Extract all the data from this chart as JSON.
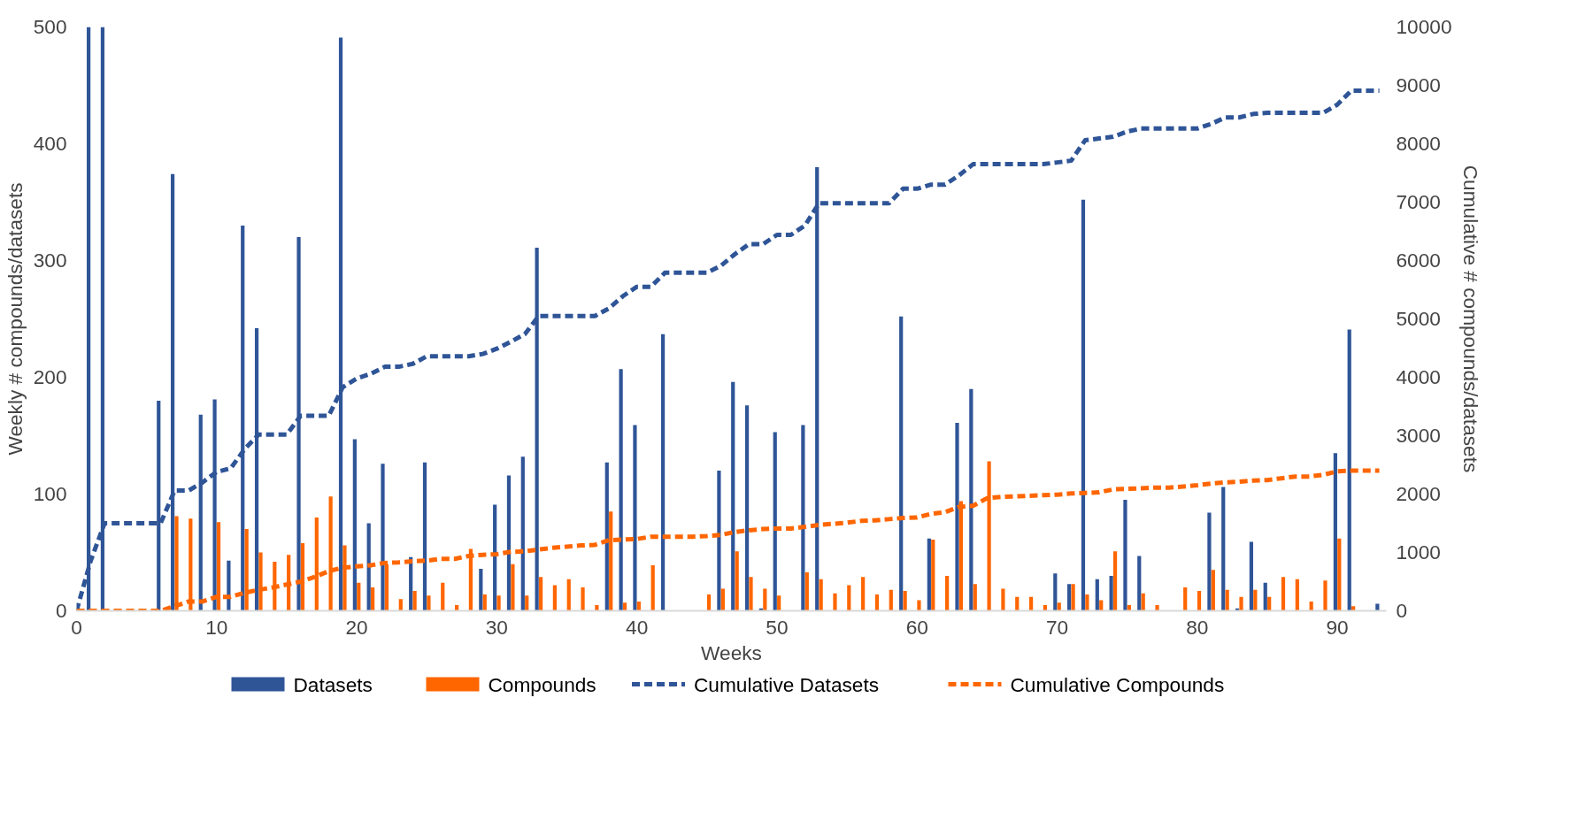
{
  "chart_data": {
    "type": "bar",
    "xlabel": "Weeks",
    "ylabel": "Weekly # compounds/datasets",
    "y2label": "Cumulative # compounds/datasets",
    "xlim": [
      0,
      93.5
    ],
    "xticks": [
      0,
      10,
      20,
      30,
      40,
      50,
      60,
      70,
      80,
      90
    ],
    "ylim": [
      0,
      500
    ],
    "yticks": [
      0,
      100,
      200,
      300,
      400,
      500
    ],
    "y2lim": [
      0,
      10000
    ],
    "y2ticks": [
      0,
      1000,
      2000,
      3000,
      4000,
      5000,
      6000,
      7000,
      8000,
      9000,
      10000
    ],
    "grid": false,
    "legend": "bottom",
    "marker": "none",
    "series": [
      {
        "name": "Datasets",
        "color": "#2f5597",
        "x": [
          1,
          2,
          6,
          7,
          9,
          10,
          11,
          12,
          13,
          16,
          19,
          20,
          21,
          22,
          24,
          25,
          29,
          30,
          31,
          32,
          33,
          38,
          39,
          40,
          42,
          46,
          47,
          48,
          49,
          50,
          52,
          53,
          59,
          61,
          63,
          64,
          70,
          71,
          72,
          73,
          74,
          75,
          76,
          81,
          82,
          83,
          84,
          85,
          90,
          91,
          93
        ],
        "values": [
          500,
          500,
          180,
          374,
          168,
          181,
          43,
          330,
          242,
          320,
          491,
          147,
          75,
          126,
          46,
          127,
          36,
          91,
          116,
          132,
          311,
          127,
          207,
          159,
          237,
          120,
          196,
          176,
          2,
          153,
          159,
          380,
          252,
          62,
          161,
          190,
          32,
          23,
          352,
          27,
          30,
          95,
          47,
          84,
          106,
          2,
          59,
          24,
          135,
          241,
          6
        ]
      },
      {
        "name": "Compounds",
        "color": "#ff6600",
        "x": [
          7,
          8,
          10,
          12,
          13,
          14,
          15,
          16,
          17,
          18,
          19,
          20,
          21,
          22,
          23,
          24,
          25,
          26,
          27,
          28,
          29,
          30,
          31,
          32,
          33,
          34,
          35,
          36,
          37,
          38,
          39,
          40,
          41,
          45,
          46,
          47,
          48,
          49,
          50,
          52,
          53,
          54,
          55,
          56,
          57,
          58,
          59,
          60,
          61,
          62,
          63,
          64,
          65,
          66,
          67,
          68,
          69,
          70,
          71,
          72,
          73,
          74,
          75,
          76,
          77,
          79,
          80,
          81,
          82,
          83,
          84,
          85,
          86,
          87,
          88,
          89,
          90,
          91
        ],
        "values": [
          81,
          79,
          76,
          70,
          50,
          42,
          48,
          58,
          80,
          98,
          56,
          24,
          20,
          40,
          10,
          17,
          13,
          24,
          5,
          53,
          14,
          13,
          40,
          13,
          29,
          22,
          27,
          20,
          5,
          85,
          7,
          8,
          39,
          14,
          19,
          51,
          29,
          19,
          13,
          33,
          27,
          15,
          22,
          29,
          14,
          18,
          17,
          9,
          61,
          30,
          94,
          23,
          128,
          19,
          12,
          12,
          5,
          7,
          23,
          14,
          9,
          51,
          5,
          15,
          5,
          20,
          17,
          35,
          18,
          12,
          18,
          12,
          29,
          27,
          8,
          26,
          62,
          4
        ]
      },
      {
        "name": "Cumulative Datasets",
        "type": "line",
        "axis": "y2",
        "line_style": "dashed",
        "color": "#2f5597",
        "x": [
          0,
          1,
          2,
          3,
          4,
          5,
          6,
          7,
          8,
          9,
          10,
          11,
          12,
          13,
          14,
          15,
          16,
          17,
          18,
          19,
          20,
          21,
          22,
          23,
          24,
          25,
          26,
          27,
          28,
          29,
          30,
          31,
          32,
          33,
          34,
          35,
          36,
          37,
          38,
          39,
          40,
          41,
          42,
          43,
          44,
          45,
          46,
          47,
          48,
          49,
          50,
          51,
          52,
          53,
          54,
          55,
          56,
          57,
          58,
          59,
          60,
          61,
          62,
          63,
          64,
          65,
          66,
          67,
          68,
          69,
          70,
          71,
          72,
          73,
          74,
          75,
          76,
          77,
          78,
          79,
          80,
          81,
          82,
          83,
          84,
          85,
          86,
          87,
          88,
          89,
          90,
          91,
          92,
          93
        ],
        "values": [
          0,
          850,
          1500,
          1500,
          1500,
          1500,
          1500,
          2060,
          2060,
          2200,
          2380,
          2440,
          2770,
          3020,
          3020,
          3020,
          3340,
          3340,
          3340,
          3830,
          3980,
          4060,
          4180,
          4180,
          4230,
          4360,
          4360,
          4360,
          4360,
          4400,
          4490,
          4610,
          4740,
          5050,
          5050,
          5050,
          5050,
          5050,
          5180,
          5390,
          5550,
          5550,
          5790,
          5790,
          5790,
          5790,
          5910,
          6110,
          6280,
          6280,
          6440,
          6440,
          6600,
          6980,
          6980,
          6980,
          6980,
          6980,
          6980,
          7230,
          7230,
          7300,
          7300,
          7460,
          7650,
          7650,
          7650,
          7650,
          7650,
          7650,
          7680,
          7710,
          8060,
          8090,
          8120,
          8210,
          8260,
          8260,
          8260,
          8260,
          8260,
          8340,
          8450,
          8450,
          8510,
          8530,
          8530,
          8530,
          8530,
          8530,
          8670,
          8910,
          8910,
          8910
        ]
      },
      {
        "name": "Cumulative Compounds",
        "type": "line",
        "axis": "y2",
        "line_style": "dashed",
        "color": "#ff6600",
        "x": [
          0,
          1,
          2,
          3,
          4,
          5,
          6,
          7,
          8,
          9,
          10,
          11,
          12,
          13,
          14,
          15,
          16,
          17,
          18,
          19,
          20,
          21,
          22,
          23,
          24,
          25,
          26,
          27,
          28,
          29,
          30,
          31,
          32,
          33,
          34,
          35,
          36,
          37,
          38,
          39,
          40,
          41,
          42,
          43,
          44,
          45,
          46,
          47,
          48,
          49,
          50,
          51,
          52,
          53,
          54,
          55,
          56,
          57,
          58,
          59,
          60,
          61,
          62,
          63,
          64,
          65,
          66,
          67,
          68,
          69,
          70,
          71,
          72,
          73,
          74,
          75,
          76,
          77,
          78,
          79,
          80,
          81,
          82,
          83,
          84,
          85,
          86,
          87,
          88,
          89,
          90,
          91,
          92,
          93
        ],
        "values": [
          0,
          0,
          0,
          0,
          0,
          0,
          0,
          80,
          160,
          160,
          240,
          240,
          310,
          360,
          400,
          450,
          500,
          580,
          680,
          740,
          760,
          780,
          820,
          830,
          850,
          860,
          890,
          890,
          940,
          960,
          970,
          1010,
          1020,
          1050,
          1080,
          1100,
          1120,
          1130,
          1210,
          1220,
          1230,
          1270,
          1270,
          1270,
          1270,
          1280,
          1300,
          1350,
          1380,
          1400,
          1410,
          1410,
          1440,
          1470,
          1490,
          1510,
          1540,
          1550,
          1570,
          1590,
          1600,
          1660,
          1690,
          1780,
          1800,
          1930,
          1950,
          1960,
          1970,
          1980,
          1990,
          2010,
          2020,
          2030,
          2080,
          2090,
          2100,
          2110,
          2110,
          2130,
          2150,
          2180,
          2200,
          2210,
          2230,
          2240,
          2270,
          2300,
          2300,
          2330,
          2390,
          2400,
          2400,
          2400
        ]
      }
    ]
  }
}
